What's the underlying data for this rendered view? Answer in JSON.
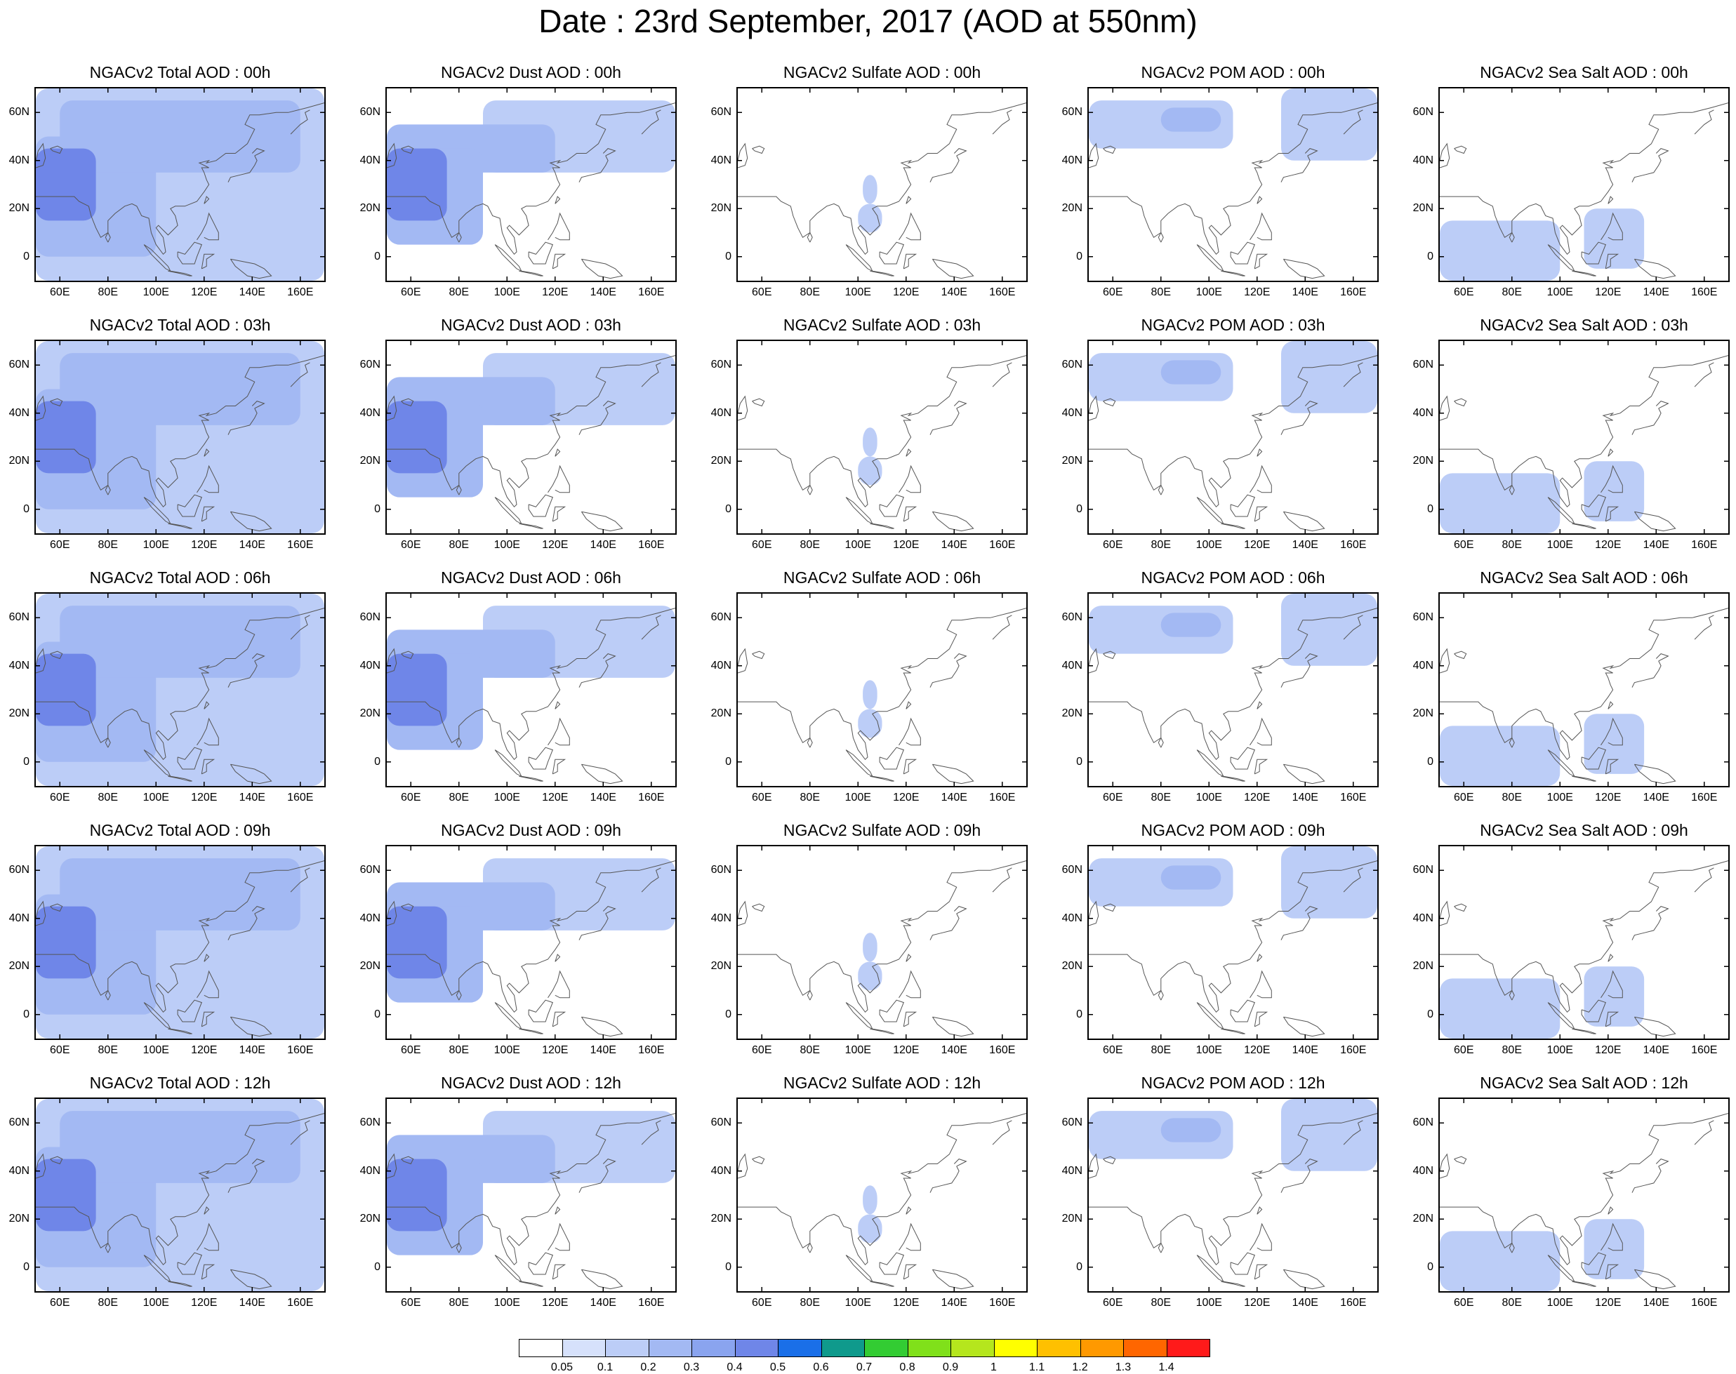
{
  "title": "Date : 23rd September, 2017 (AOD at 550nm)",
  "panels": [
    [
      "NGACv2 Total AOD : 00h",
      "NGACv2 Dust AOD : 00h",
      "NGACv2 Sulfate AOD : 00h",
      "NGACv2 POM AOD : 00h",
      "NGACv2 Sea Salt AOD : 00h"
    ],
    [
      "NGACv2 Total AOD : 03h",
      "NGACv2 Dust AOD : 03h",
      "NGACv2 Sulfate AOD : 03h",
      "NGACv2 POM AOD : 03h",
      "NGACv2 Sea Salt AOD : 03h"
    ],
    [
      "NGACv2 Total AOD : 06h",
      "NGACv2 Dust AOD : 06h",
      "NGACv2 Sulfate AOD : 06h",
      "NGACv2 POM AOD : 06h",
      "NGACv2 Sea Salt AOD : 06h"
    ],
    [
      "NGACv2 Total AOD : 09h",
      "NGACv2 Dust AOD : 09h",
      "NGACv2 Sulfate AOD : 09h",
      "NGACv2 POM AOD : 09h",
      "NGACv2 Sea Salt  AOD : 09h"
    ],
    [
      "NGACv2 Total AOD  : 12h",
      "NGACv2 Dust AOD : 12h",
      "NGACv2 Sulfate AOD : 12h",
      "NGACv2 POM  AOD : 12h",
      "NGACv2 Sea Salt  AOD : 12h"
    ]
  ],
  "axes": {
    "lat_ticks": [
      "60N",
      "40N",
      "20N",
      "0"
    ],
    "lon_ticks": [
      "60E",
      "80E",
      "100E",
      "120E",
      "140E",
      "160E"
    ],
    "lat_values": [
      60,
      40,
      20,
      0
    ],
    "lon_values": [
      60,
      80,
      100,
      120,
      140,
      160
    ],
    "lon_range": [
      50,
      170
    ],
    "lat_range": [
      -10,
      70
    ]
  },
  "colorbar": {
    "labels": [
      "0.05",
      "0.1",
      "0.2",
      "0.3",
      "0.4",
      "0.5",
      "0.6",
      "0.7",
      "0.8",
      "0.9",
      "1",
      "1.1",
      "1.2",
      "1.3",
      "1.4"
    ],
    "colors": [
      "#ffffff",
      "#d6e1fb",
      "#bccdf7",
      "#a3b9f3",
      "#8aa4ef",
      "#6f86e8",
      "#1a6fe8",
      "#0f9a8c",
      "#33cc33",
      "#80e01a",
      "#b5e61d",
      "#ffff00",
      "#ffc000",
      "#ff9900",
      "#ff6600",
      "#ff1a1a"
    ]
  },
  "chart_data": {
    "type": "heatmap",
    "title": "Date : 23rd September, 2017 (AOD at 550nm)",
    "rows_forecast_hour": [
      "00h",
      "03h",
      "06h",
      "09h",
      "12h"
    ],
    "columns_species": [
      "Total",
      "Dust",
      "Sulfate",
      "POM",
      "Sea Salt"
    ],
    "lon_range": [
      50,
      170
    ],
    "lat_range": [
      -10,
      70
    ],
    "levels": [
      0.05,
      0.1,
      0.2,
      0.3,
      0.4,
      0.5,
      0.6,
      0.7,
      0.8,
      0.9,
      1,
      1.1,
      1.2,
      1.3,
      1.4
    ],
    "regions": {
      "Total": [
        {
          "lon": [
            50,
            75
          ],
          "lat": [
            15,
            45
          ],
          "aod": 0.4
        },
        {
          "lon": [
            50,
            100
          ],
          "lat": [
            0,
            50
          ],
          "aod": 0.2
        },
        {
          "lon": [
            60,
            160
          ],
          "lat": [
            35,
            65
          ],
          "aod": 0.2
        },
        {
          "lon": [
            100,
            140
          ],
          "lat": [
            -10,
            20
          ],
          "aod": 0.1
        },
        {
          "lon": [
            50,
            170
          ],
          "lat": [
            -10,
            70
          ],
          "aod": 0.1
        }
      ],
      "Dust": [
        {
          "lon": [
            50,
            75
          ],
          "lat": [
            15,
            45
          ],
          "aod": 0.4
        },
        {
          "lon": [
            50,
            120
          ],
          "lat": [
            35,
            55
          ],
          "aod": 0.2
        },
        {
          "lon": [
            50,
            90
          ],
          "lat": [
            5,
            45
          ],
          "aod": 0.2
        },
        {
          "lon": [
            90,
            170
          ],
          "lat": [
            35,
            65
          ],
          "aod": 0.1
        }
      ],
      "Sulfate": [
        {
          "lon": [
            102,
            108
          ],
          "lat": [
            22,
            34
          ],
          "aod": 0.1
        },
        {
          "lon": [
            100,
            110
          ],
          "lat": [
            10,
            22
          ],
          "aod": 0.1
        }
      ],
      "POM": [
        {
          "lon": [
            50,
            110
          ],
          "lat": [
            45,
            65
          ],
          "aod": 0.1
        },
        {
          "lon": [
            130,
            170
          ],
          "lat": [
            40,
            70
          ],
          "aod": 0.1
        },
        {
          "lon": [
            80,
            105
          ],
          "lat": [
            52,
            62
          ],
          "aod": 0.2
        }
      ],
      "Sea Salt": [
        {
          "lon": [
            50,
            100
          ],
          "lat": [
            -10,
            15
          ],
          "aod": 0.1
        },
        {
          "lon": [
            110,
            135
          ],
          "lat": [
            -5,
            20
          ],
          "aod": 0.1
        }
      ]
    }
  }
}
